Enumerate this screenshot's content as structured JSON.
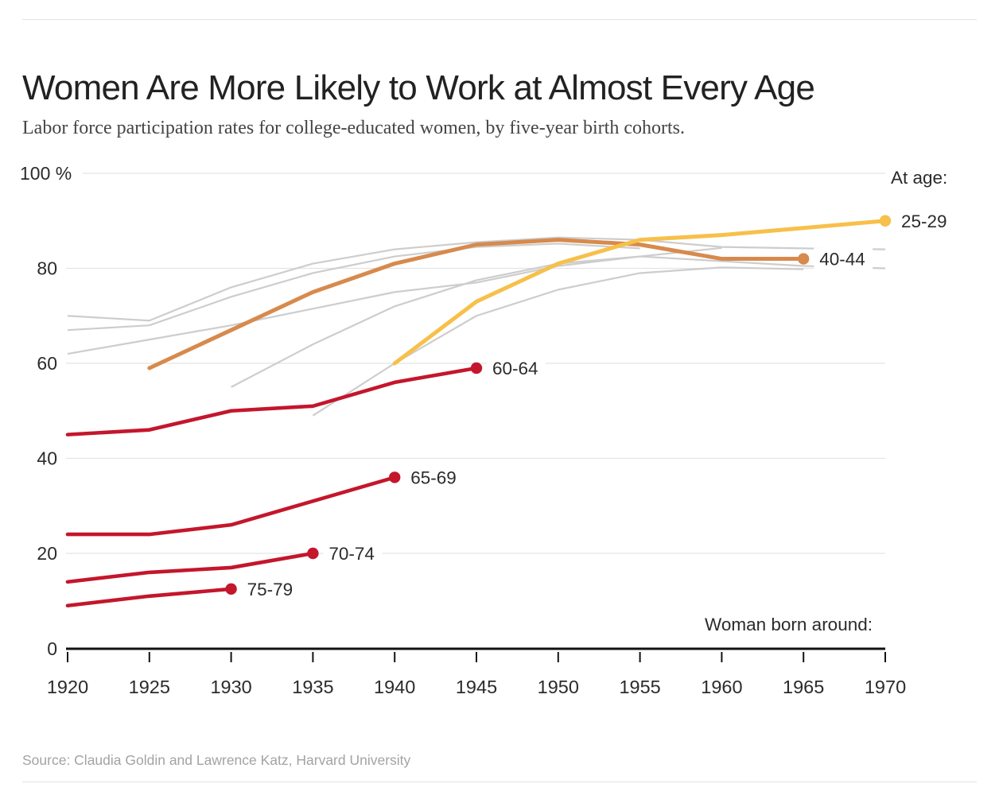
{
  "header": {
    "title": "Women Are More Likely to Work at Almost Every Age",
    "subtitle": "Labor force participation rates for college-educated women, by five-year birth cohorts."
  },
  "source": "Source: Claudia Goldin and Lawrence Katz, Harvard University",
  "chart_data": {
    "type": "line",
    "title": "Women Are More Likely to Work at Almost Every Age",
    "subtitle": "Labor force participation rates for college-educated women, by five-year birth cohorts.",
    "legend_title": "At age:",
    "x_axis": {
      "label": "Woman born around:",
      "ticks": [
        1920,
        1925,
        1930,
        1935,
        1940,
        1945,
        1950,
        1955,
        1960,
        1965,
        1970
      ],
      "range": [
        1920,
        1970
      ]
    },
    "y_axis": {
      "unit": "%",
      "range": [
        0,
        100
      ],
      "grid": true,
      "ticks": [
        {
          "value": 100,
          "label": "100 %"
        },
        {
          "value": 80,
          "label": "80"
        },
        {
          "value": 60,
          "label": "60"
        },
        {
          "value": 40,
          "label": "40"
        },
        {
          "value": 20,
          "label": "20"
        },
        {
          "value": 0,
          "label": "0"
        }
      ]
    },
    "series": [
      {
        "name": "25-29",
        "color_key": "yellow",
        "end_dot": true,
        "points": [
          [
            1940,
            60
          ],
          [
            1945,
            73
          ],
          [
            1950,
            81
          ],
          [
            1955,
            86
          ],
          [
            1960,
            87
          ],
          [
            1965,
            88.5
          ],
          [
            1970,
            90
          ]
        ]
      },
      {
        "name": "40-44",
        "color_key": "orange",
        "end_dot": true,
        "points": [
          [
            1925,
            59
          ],
          [
            1930,
            67
          ],
          [
            1935,
            75
          ],
          [
            1940,
            81
          ],
          [
            1945,
            85
          ],
          [
            1950,
            86
          ],
          [
            1955,
            85
          ],
          [
            1960,
            82
          ],
          [
            1965,
            82
          ]
        ]
      },
      {
        "name": "60-64",
        "color_key": "red",
        "end_dot": true,
        "points": [
          [
            1920,
            45
          ],
          [
            1925,
            46
          ],
          [
            1930,
            50
          ],
          [
            1935,
            51
          ],
          [
            1940,
            56
          ],
          [
            1945,
            59
          ]
        ]
      },
      {
        "name": "65-69",
        "color_key": "red",
        "end_dot": true,
        "points": [
          [
            1920,
            24
          ],
          [
            1925,
            24
          ],
          [
            1930,
            26
          ],
          [
            1935,
            31
          ],
          [
            1940,
            36
          ]
        ]
      },
      {
        "name": "70-74",
        "color_key": "red",
        "end_dot": true,
        "points": [
          [
            1920,
            14
          ],
          [
            1925,
            16
          ],
          [
            1930,
            17
          ],
          [
            1935,
            20
          ]
        ]
      },
      {
        "name": "75-79",
        "color_key": "red",
        "end_dot": true,
        "points": [
          [
            1920,
            9
          ],
          [
            1925,
            11
          ],
          [
            1930,
            12.5
          ]
        ]
      }
    ],
    "background_series": [
      {
        "points": [
          [
            1920,
            70
          ],
          [
            1925,
            69
          ],
          [
            1930,
            76
          ],
          [
            1935,
            81
          ],
          [
            1940,
            84
          ],
          [
            1945,
            85.5
          ],
          [
            1950,
            86.5
          ],
          [
            1955,
            86
          ],
          [
            1960,
            84.5
          ],
          [
            1965,
            84.2
          ],
          [
            1970,
            84
          ]
        ]
      },
      {
        "points": [
          [
            1920,
            67
          ],
          [
            1925,
            68
          ],
          [
            1930,
            74
          ],
          [
            1935,
            79
          ],
          [
            1940,
            82.5
          ],
          [
            1945,
            84.5
          ],
          [
            1950,
            85.2
          ],
          [
            1955,
            84.2
          ]
        ]
      },
      {
        "points": [
          [
            1920,
            62
          ],
          [
            1925,
            65
          ],
          [
            1930,
            68
          ],
          [
            1935,
            71.5
          ],
          [
            1940,
            75
          ],
          [
            1945,
            77
          ],
          [
            1950,
            80.5
          ],
          [
            1955,
            82.5
          ],
          [
            1960,
            84.3
          ]
        ]
      },
      {
        "points": [
          [
            1930,
            55
          ],
          [
            1935,
            64
          ],
          [
            1940,
            72
          ],
          [
            1945,
            77.5
          ],
          [
            1950,
            81
          ],
          [
            1955,
            82.5
          ],
          [
            1960,
            81.5
          ],
          [
            1965,
            80.5
          ],
          [
            1970,
            80
          ]
        ]
      },
      {
        "points": [
          [
            1935,
            49
          ],
          [
            1940,
            60
          ],
          [
            1945,
            70
          ],
          [
            1950,
            75.5
          ],
          [
            1955,
            79
          ],
          [
            1960,
            80.2
          ],
          [
            1965,
            79.8
          ]
        ]
      }
    ],
    "colors": {
      "yellow": "#F7C04A",
      "orange": "#D78A4D",
      "red": "#C4162C",
      "background_gray": "#CDCDCD",
      "grid": "#E4E4E4",
      "axis": "#121212",
      "text": "#2B2B2B"
    }
  }
}
